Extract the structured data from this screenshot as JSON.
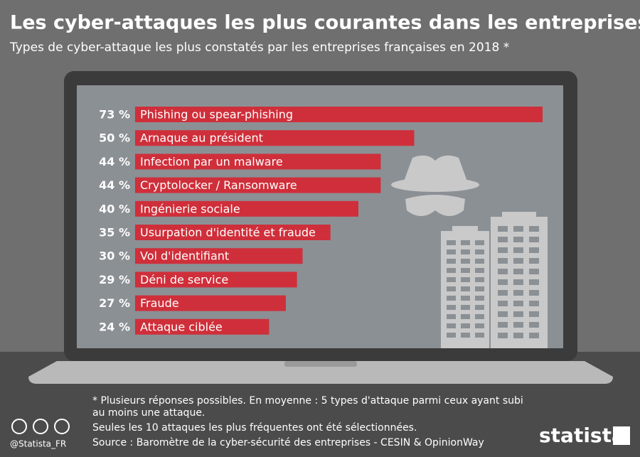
{
  "chart_data": {
    "type": "bar",
    "orientation": "horizontal",
    "title": "Les cyber-attaques les plus courantes dans les entreprises",
    "subtitle": "Types de cyber-attaque les plus constatés par les entreprises françaises en 2018 *",
    "categories": [
      "Phishing ou spear-phishing",
      "Arnaque au président",
      "Infection par un malware",
      "Cryptolocker / Ransomware",
      "Ingénierie sociale",
      "Usurpation d'identité et fraude",
      "Vol d'identifiant",
      "Déni de service",
      "Fraude",
      "Attaque ciblée"
    ],
    "values": [
      73,
      50,
      44,
      44,
      40,
      35,
      30,
      29,
      27,
      24
    ],
    "value_labels": [
      "73 %",
      "50 %",
      "44 %",
      "44 %",
      "40 %",
      "35 %",
      "30 %",
      "29 %",
      "27 %",
      "24 %"
    ],
    "color": "#cf2f3a",
    "notes": [
      "* Plusieurs réponses possibles. En moyenne : 5 types d'attaque parmi ceux ayant subi au moins une attaque.",
      "Seules les 10 attaques les plus fréquentes ont été sélectionnées."
    ],
    "source": "Source : Baromètre de la cyber-sécurité des entreprises - CESIN & OpinionWay",
    "credit": "@Statista_FR",
    "brand": "statista"
  }
}
